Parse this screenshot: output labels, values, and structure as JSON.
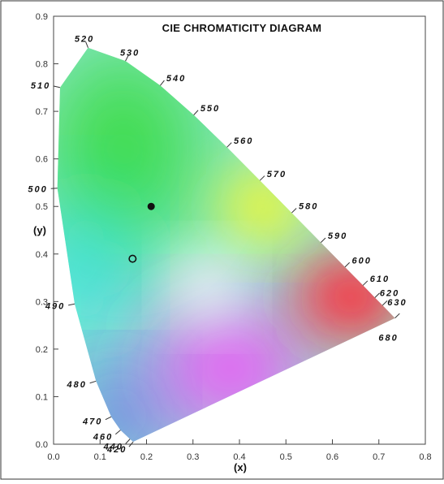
{
  "chart_data": {
    "type": "scatter",
    "title": "CIE CHROMATICITY DIAGRAM",
    "xlabel": "(x)",
    "ylabel": "(y)",
    "xlim": [
      0.0,
      0.8
    ],
    "ylim": [
      0.0,
      0.9
    ],
    "x_ticks": [
      "0.0",
      "0.1",
      "0.2",
      "0.3",
      "0.4",
      "0.5",
      "0.6",
      "0.7",
      "0.8"
    ],
    "y_ticks": [
      "0.0",
      "0.1",
      "0.2",
      "0.3",
      "0.4",
      "0.5",
      "0.6",
      "0.7",
      "0.8",
      "0.9"
    ],
    "grid": false,
    "spectral_locus": [
      {
        "nm": "420",
        "x": 0.1714,
        "y": 0.0051
      },
      {
        "nm": "440",
        "x": 0.1644,
        "y": 0.0109
      },
      {
        "nm": "460",
        "x": 0.144,
        "y": 0.0297
      },
      {
        "nm": "470",
        "x": 0.1241,
        "y": 0.0578
      },
      {
        "nm": "480",
        "x": 0.0913,
        "y": 0.1327
      },
      {
        "nm": "490",
        "x": 0.0454,
        "y": 0.295
      },
      {
        "nm": "500",
        "x": 0.0082,
        "y": 0.5384
      },
      {
        "nm": "510",
        "x": 0.0139,
        "y": 0.7502
      },
      {
        "nm": "520",
        "x": 0.0743,
        "y": 0.8338
      },
      {
        "nm": "530",
        "x": 0.1547,
        "y": 0.8059
      },
      {
        "nm": "540",
        "x": 0.2296,
        "y": 0.7543
      },
      {
        "nm": "550",
        "x": 0.3016,
        "y": 0.6923
      },
      {
        "nm": "560",
        "x": 0.3731,
        "y": 0.6245
      },
      {
        "nm": "570",
        "x": 0.4441,
        "y": 0.5547
      },
      {
        "nm": "580",
        "x": 0.5125,
        "y": 0.4866
      },
      {
        "nm": "590",
        "x": 0.5752,
        "y": 0.4242
      },
      {
        "nm": "600",
        "x": 0.627,
        "y": 0.3725
      },
      {
        "nm": "610",
        "x": 0.6658,
        "y": 0.334
      },
      {
        "nm": "620",
        "x": 0.6915,
        "y": 0.3083
      },
      {
        "nm": "630",
        "x": 0.7079,
        "y": 0.292
      },
      {
        "nm": "680",
        "x": 0.7347,
        "y": 0.2653
      }
    ],
    "points": [
      {
        "x": 0.21,
        "y": 0.5,
        "style": "filled"
      },
      {
        "x": 0.17,
        "y": 0.39,
        "style": "hollow"
      }
    ],
    "fill_colors": {
      "green": "#3ddc4a",
      "cyan": "#22e0e8",
      "blue": "#4a4af0",
      "magenta": "#ff3cff",
      "red": "#ff2a3c",
      "yellow": "#f8f828",
      "white": "#ffffff"
    }
  }
}
